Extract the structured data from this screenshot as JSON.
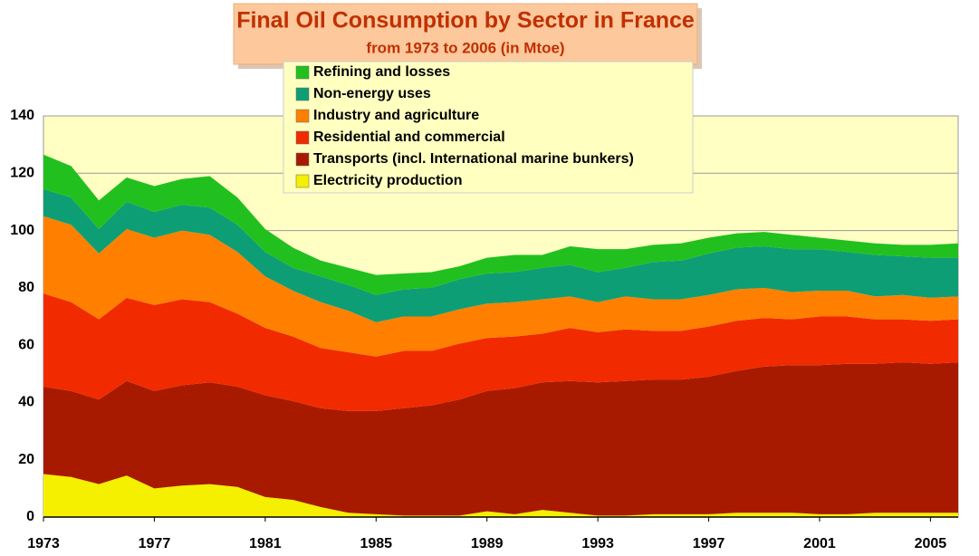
{
  "chart_data": {
    "type": "stacked_area",
    "title": "Final Oil Consumption by Sector in France",
    "subtitle": "from 1973 to 2006 (in Mtoe)",
    "x": [
      1973,
      1974,
      1975,
      1976,
      1977,
      1978,
      1979,
      1980,
      1981,
      1982,
      1983,
      1984,
      1985,
      1986,
      1987,
      1988,
      1989,
      1990,
      1991,
      1992,
      1993,
      1994,
      1995,
      1996,
      1997,
      1998,
      1999,
      2000,
      2001,
      2002,
      2003,
      2004,
      2005,
      2006
    ],
    "xlim": [
      1973,
      2006
    ],
    "xticks": [
      1973,
      1977,
      1981,
      1985,
      1989,
      1993,
      1997,
      2001,
      2005
    ],
    "ylim": [
      0,
      140
    ],
    "yticks": [
      0,
      20,
      40,
      60,
      80,
      100,
      120,
      140
    ],
    "grid": true,
    "series": [
      {
        "name": "Electricity production",
        "color": "#f5ef00",
        "values": [
          15,
          14,
          11.5,
          14.5,
          10,
          11,
          11.5,
          10.5,
          7,
          6,
          3.5,
          1.5,
          1,
          0.5,
          0.5,
          0.5,
          2,
          1,
          2.5,
          1.5,
          0.5,
          0.5,
          1,
          1,
          1,
          1.5,
          1.5,
          1.5,
          1,
          1,
          1.5,
          1.5,
          1.5,
          1.5
        ]
      },
      {
        "name": "Transports (incl. International marine bunkers)",
        "color": "#a81a00",
        "values": [
          30.5,
          30,
          29.5,
          33,
          34,
          35,
          35.5,
          35,
          35.5,
          34.5,
          34.5,
          35.5,
          36,
          37.5,
          38.5,
          40.5,
          42,
          44,
          44.5,
          46,
          46.5,
          47,
          47,
          47,
          48,
          49.5,
          51,
          51.5,
          52,
          52.5,
          52,
          52.5,
          52,
          52.5
        ]
      },
      {
        "name": "Residential and commercial",
        "color": "#f22a00",
        "values": [
          32.5,
          31,
          28,
          29,
          30,
          30,
          28,
          25.5,
          23.5,
          22.5,
          21,
          20.5,
          19,
          20,
          19,
          19.5,
          18.5,
          18,
          17,
          18.5,
          17.5,
          18,
          17,
          17,
          17.5,
          17.5,
          17,
          16,
          17,
          16.5,
          15.5,
          15,
          15,
          15
        ]
      },
      {
        "name": "Industry and agriculture",
        "color": "#ff8000",
        "values": [
          27,
          27,
          23,
          24,
          23.5,
          24,
          23.5,
          21.5,
          18,
          16,
          16,
          14.5,
          12,
          12,
          12,
          12,
          12,
          12,
          12,
          11,
          10.5,
          11.5,
          11,
          11,
          11,
          11,
          10.5,
          9.5,
          9,
          9,
          8,
          8.5,
          8,
          8
        ]
      },
      {
        "name": "Non-energy uses",
        "color": "#0e9e76",
        "values": [
          9.5,
          9.5,
          8.5,
          9.5,
          9,
          9,
          9.5,
          9.5,
          8.5,
          8,
          9,
          9,
          9.5,
          9.5,
          10,
          10.5,
          10.5,
          10.5,
          11,
          11,
          10.5,
          10,
          13,
          13.5,
          14.5,
          14.5,
          14.5,
          15,
          14.5,
          13.5,
          14.5,
          13.5,
          14,
          13.5
        ]
      },
      {
        "name": "Refining and losses",
        "color": "#22c01e",
        "values": [
          12,
          11,
          10,
          8.5,
          9,
          9,
          11,
          9.5,
          8,
          7,
          5.5,
          6,
          7,
          5.5,
          5.5,
          4.5,
          5.5,
          6,
          4.5,
          6.5,
          8,
          6.5,
          6,
          6,
          5.5,
          5,
          5,
          5,
          4,
          4,
          4,
          4,
          4.5,
          5
        ]
      }
    ]
  }
}
